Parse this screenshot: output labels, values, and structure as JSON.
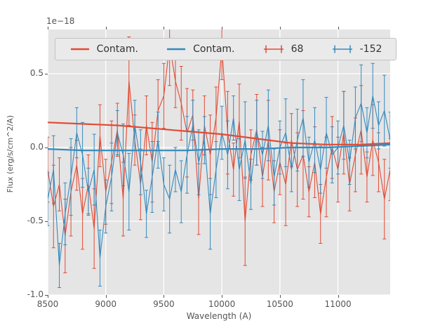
{
  "figure": {
    "offset_text": "1e−18",
    "xlabel": "Wavelength (A)",
    "ylabel": "Flux (erg/s/cm^2/A)"
  },
  "legend": {
    "items": [
      {
        "label": "Contam.",
        "type": "line",
        "color": "#E24A33"
      },
      {
        "label": "Contam.",
        "type": "line",
        "color": "#348ABD"
      },
      {
        "label": "68",
        "type": "errorbar",
        "color": "#E24A33"
      },
      {
        "label": "-152",
        "type": "errorbar",
        "color": "#348ABD"
      }
    ]
  },
  "chart_data": {
    "type": "line",
    "title": "",
    "xlabel": "Wavelength (A)",
    "ylabel": "Flux (erg/s/cm^2/A)",
    "y_offset_factor": "1e−18",
    "xlim": [
      8500,
      11450
    ],
    "ylim": [
      -1.0,
      0.8
    ],
    "xticks": [
      8500,
      9000,
      9500,
      10000,
      10500,
      11000
    ],
    "yticks": [
      -1.0,
      -0.5,
      0.0,
      0.5
    ],
    "grid": true,
    "grid_color": "#FFFFFF",
    "background": "#E5E5E5",
    "legend_position": "upper center",
    "series": [
      {
        "name": "Contam.",
        "type": "line",
        "color": "#E24A33",
        "x": [
          8500,
          8800,
          9100,
          9400,
          9700,
          10000,
          10300,
          10600,
          10900,
          11200,
          11450
        ],
        "y": [
          0.17,
          0.16,
          0.15,
          0.13,
          0.11,
          0.09,
          0.06,
          0.03,
          0.02,
          0.02,
          0.03
        ]
      },
      {
        "name": "Contam.",
        "type": "line",
        "color": "#348ABD",
        "x": [
          8500,
          8800,
          9100,
          9400,
          9700,
          10000,
          10300,
          10600,
          10900,
          11200,
          11450
        ],
        "y": [
          -0.01,
          -0.02,
          -0.02,
          -0.02,
          -0.02,
          -0.01,
          -0.01,
          0.0,
          0.0,
          0.01,
          0.02
        ]
      },
      {
        "name": "68",
        "type": "errorbar",
        "color": "#E24A33",
        "x": [
          8500,
          8550,
          8600,
          8650,
          8700,
          8750,
          8800,
          8850,
          8900,
          8950,
          9000,
          9050,
          9100,
          9150,
          9200,
          9250,
          9300,
          9350,
          9400,
          9450,
          9500,
          9550,
          9600,
          9650,
          9700,
          9750,
          9800,
          9850,
          9900,
          9950,
          10000,
          10050,
          10100,
          10150,
          10200,
          10250,
          10300,
          10350,
          10400,
          10450,
          10500,
          10550,
          10600,
          10650,
          10700,
          10750,
          10800,
          10850,
          10900,
          10950,
          11000,
          11050,
          11100,
          11150,
          11200,
          11250,
          11300,
          11350,
          11400,
          11450
        ],
        "y": [
          -0.15,
          -0.4,
          -0.25,
          -0.6,
          -0.3,
          -0.12,
          -0.45,
          -0.25,
          -0.55,
          0.08,
          -0.3,
          -0.1,
          0.12,
          -0.35,
          0.45,
          0.05,
          -0.25,
          0.15,
          -0.1,
          0.25,
          0.35,
          0.7,
          0.45,
          0.3,
          0.1,
          0.22,
          -0.35,
          0.15,
          -0.05,
          0.2,
          0.68,
          0.1,
          -0.15,
          0.18,
          -0.5,
          -0.05,
          0.12,
          -0.2,
          0.05,
          -0.3,
          -0.1,
          -0.25,
          0.05,
          -0.15,
          -0.05,
          -0.3,
          -0.1,
          -0.45,
          -0.2,
          0.0,
          -0.15,
          0.1,
          -0.25,
          -0.05,
          0.12,
          -0.2,
          0.05,
          -0.1,
          -0.35,
          -0.15
        ],
        "yerr": [
          0.22,
          0.28,
          0.18,
          0.25,
          0.3,
          0.17,
          0.24,
          0.2,
          0.27,
          0.21,
          0.22,
          0.28,
          0.18,
          0.25,
          0.3,
          0.17,
          0.24,
          0.2,
          0.27,
          0.21,
          0.22,
          0.28,
          0.18,
          0.25,
          0.3,
          0.17,
          0.24,
          0.2,
          0.27,
          0.21,
          0.22,
          0.28,
          0.18,
          0.25,
          0.3,
          0.17,
          0.24,
          0.2,
          0.27,
          0.21,
          0.22,
          0.28,
          0.18,
          0.25,
          0.3,
          0.17,
          0.24,
          0.2,
          0.27,
          0.21,
          0.22,
          0.28,
          0.18,
          0.25,
          0.3,
          0.17,
          0.24,
          0.2,
          0.27,
          0.21
        ]
      },
      {
        "name": "-152",
        "type": "errorbar",
        "color": "#348ABD",
        "x": [
          8500,
          8550,
          8600,
          8650,
          8700,
          8750,
          8800,
          8850,
          8900,
          8950,
          9000,
          9050,
          9100,
          9150,
          9200,
          9250,
          9300,
          9350,
          9400,
          9450,
          9500,
          9550,
          9600,
          9650,
          9700,
          9750,
          9800,
          9850,
          9900,
          9950,
          10000,
          10050,
          10100,
          10150,
          10200,
          10250,
          10300,
          10350,
          10400,
          10450,
          10500,
          10550,
          10600,
          10650,
          10700,
          10750,
          10800,
          10850,
          10900,
          10950,
          11000,
          11050,
          11100,
          11150,
          11200,
          11250,
          11300,
          11350,
          11400,
          11450
        ],
        "y": [
          -0.35,
          -0.15,
          -0.8,
          -0.45,
          -0.2,
          0.1,
          -0.05,
          -0.3,
          -0.15,
          -0.75,
          -0.4,
          -0.2,
          0.1,
          -0.05,
          -0.3,
          0.15,
          -0.1,
          -0.45,
          -0.2,
          0.05,
          -0.25,
          -0.35,
          -0.15,
          -0.3,
          -0.05,
          0.15,
          -0.1,
          0.05,
          -0.45,
          -0.15,
          0.1,
          -0.05,
          0.2,
          -0.15,
          0.05,
          -0.25,
          0.1,
          -0.05,
          0.15,
          -0.2,
          0.0,
          0.1,
          -0.15,
          0.05,
          0.2,
          -0.1,
          0.05,
          -0.15,
          0.1,
          -0.05,
          0.0,
          0.15,
          -0.1,
          0.2,
          0.3,
          0.1,
          0.35,
          0.15,
          0.25,
          0.05
        ],
        "yerr": [
          0.18,
          0.23,
          0.15,
          0.21,
          0.26,
          0.17,
          0.22,
          0.16,
          0.24,
          0.19,
          0.18,
          0.23,
          0.15,
          0.21,
          0.26,
          0.17,
          0.22,
          0.16,
          0.24,
          0.19,
          0.18,
          0.23,
          0.15,
          0.21,
          0.26,
          0.17,
          0.22,
          0.16,
          0.24,
          0.19,
          0.18,
          0.23,
          0.15,
          0.21,
          0.26,
          0.17,
          0.22,
          0.16,
          0.24,
          0.19,
          0.18,
          0.23,
          0.15,
          0.21,
          0.26,
          0.17,
          0.22,
          0.16,
          0.24,
          0.19,
          0.18,
          0.23,
          0.15,
          0.21,
          0.26,
          0.17,
          0.22,
          0.16,
          0.24,
          0.19
        ]
      }
    ]
  }
}
